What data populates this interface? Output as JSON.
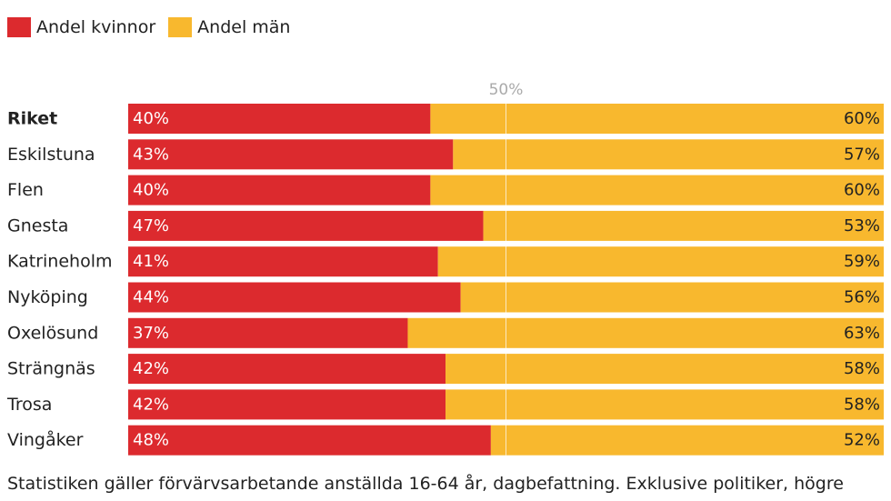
{
  "chart_data": {
    "type": "bar",
    "stacked": true,
    "orientation": "horizontal",
    "legend_position": "top-left",
    "categories": [
      "Riket",
      "Eskilstuna",
      "Flen",
      "Gnesta",
      "Katrineholm",
      "Nyköping",
      "Oxelösund",
      "Strängnäs",
      "Trosa",
      "Vingåker"
    ],
    "bold_categories": [
      "Riket"
    ],
    "series": [
      {
        "name": "Andel kvinnor",
        "color": "#dc2a2e",
        "values": [
          40,
          43,
          40,
          47,
          41,
          44,
          37,
          42,
          42,
          48
        ]
      },
      {
        "name": "Andel män",
        "color": "#f8b82e",
        "values": [
          60,
          57,
          60,
          53,
          59,
          56,
          63,
          58,
          58,
          52
        ]
      }
    ],
    "value_suffix": "%",
    "xlim": [
      0,
      100
    ],
    "reference_line": {
      "value": 50,
      "label": "50%"
    }
  },
  "footnote": "Statistiken gäller förvärvsarbetande anställda 16-64 år, dagbefattning. Exklusive politiker, högre"
}
